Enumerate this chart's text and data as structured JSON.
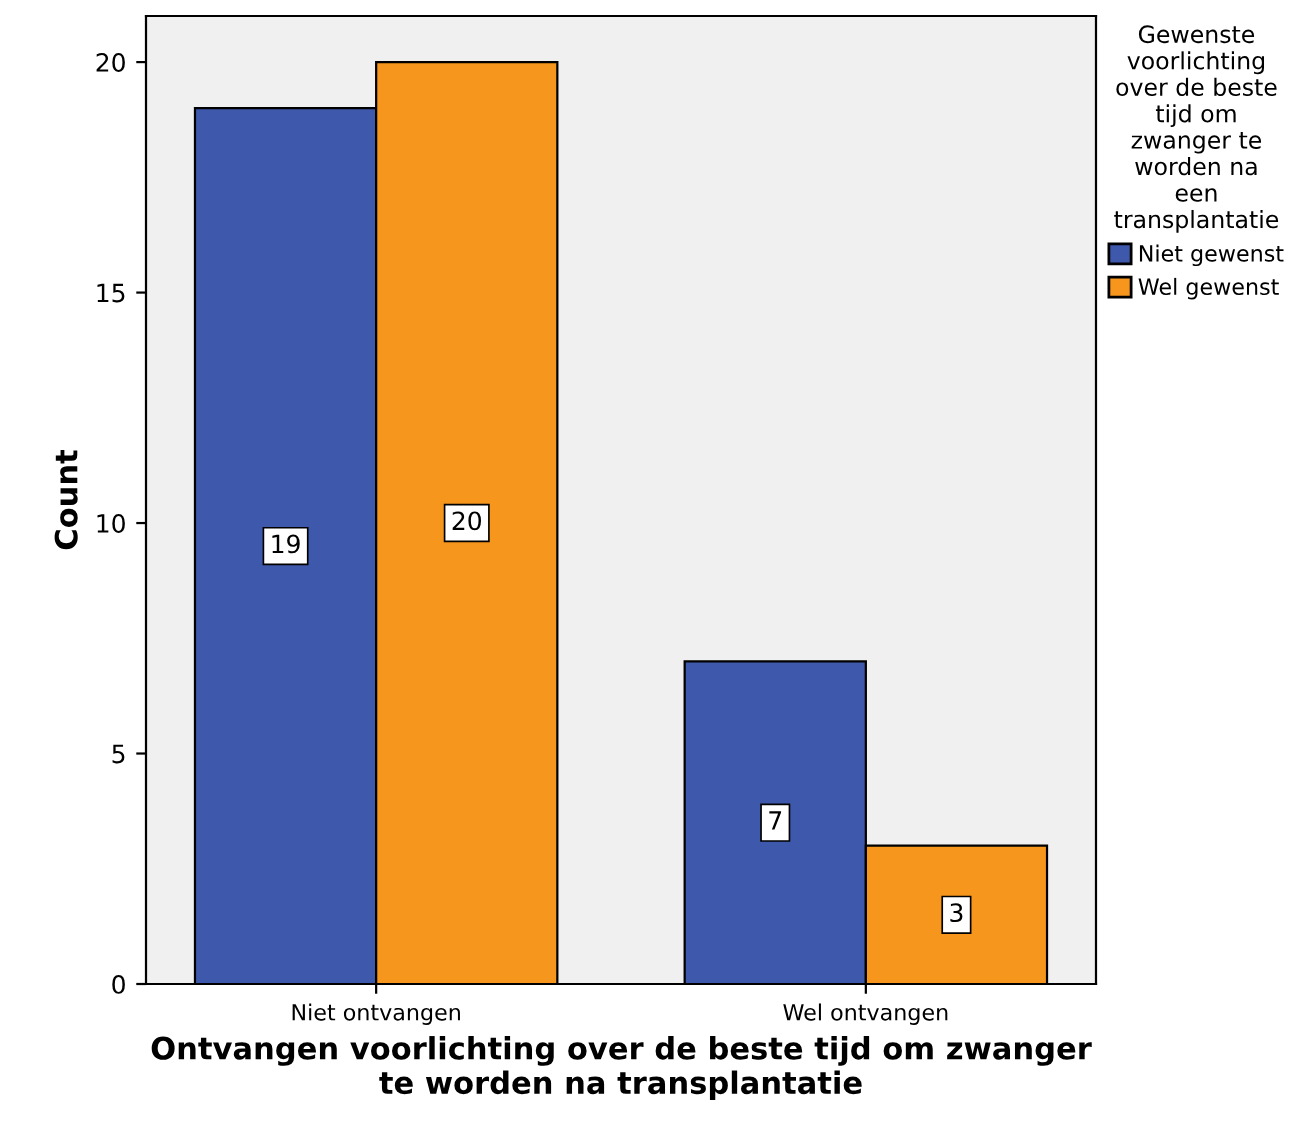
{
  "chart_data": {
    "type": "bar",
    "xlabel": "Ontvangen voorlichting over de beste tijd om zwanger\nte worden na transplantatie",
    "ylabel": "Count",
    "legend_title": "Gewenste\nvoorlichting\nover de beste\ntijd om\nzwanger te\nworden na\neen\ntransplantatie",
    "categories": [
      "Niet ontvangen",
      "Wel ontvangen"
    ],
    "series": [
      {
        "name": "Niet gewenst",
        "color": "#3e58ac",
        "values": [
          19,
          7
        ]
      },
      {
        "name": "Wel gewenst",
        "color": "#f7961d",
        "values": [
          20,
          3
        ]
      }
    ],
    "ylim": [
      0,
      21
    ],
    "yticks": [
      0,
      5,
      10,
      15,
      20
    ],
    "data_labels": true,
    "grid": false,
    "legend": "top right"
  }
}
